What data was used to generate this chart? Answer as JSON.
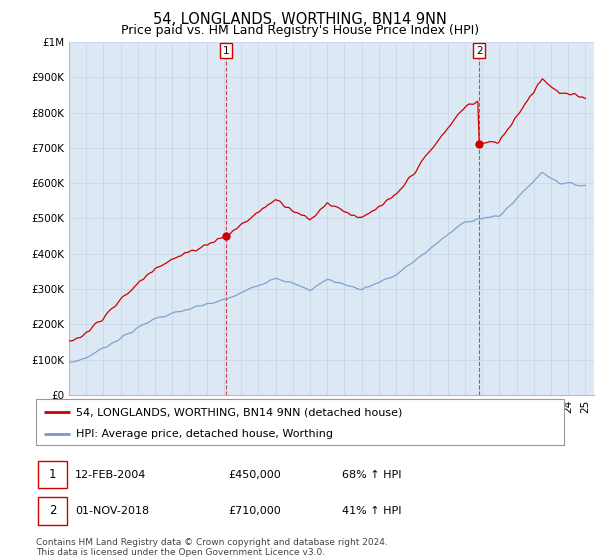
{
  "title": "54, LONGLANDS, WORTHING, BN14 9NN",
  "subtitle": "Price paid vs. HM Land Registry's House Price Index (HPI)",
  "ylim": [
    0,
    1000000
  ],
  "xlim_start": 1995.0,
  "xlim_end": 2025.5,
  "background_color": "#ffffff",
  "plot_bg_color": "#dce9f5",
  "grid_color": "#c8d8e8",
  "legend1_label": "54, LONGLANDS, WORTHING, BN14 9NN (detached house)",
  "legend2_label": "HPI: Average price, detached house, Worthing",
  "line1_color": "#cc0000",
  "line2_color": "#7799cc",
  "marker_color": "#cc0000",
  "sale1_x": 2004.12,
  "sale1_y": 450000,
  "sale2_x": 2018.83,
  "sale2_y": 710000,
  "annotation1": "12-FEB-2004",
  "annotation1_price": "£450,000",
  "annotation1_hpi": "68% ↑ HPI",
  "annotation2": "01-NOV-2018",
  "annotation2_price": "£710,000",
  "annotation2_hpi": "41% ↑ HPI",
  "footer": "Contains HM Land Registry data © Crown copyright and database right 2024.\nThis data is licensed under the Open Government Licence v3.0.",
  "title_fontsize": 10.5,
  "subtitle_fontsize": 9,
  "tick_fontsize": 7.5,
  "legend_fontsize": 8,
  "footer_fontsize": 6.5
}
